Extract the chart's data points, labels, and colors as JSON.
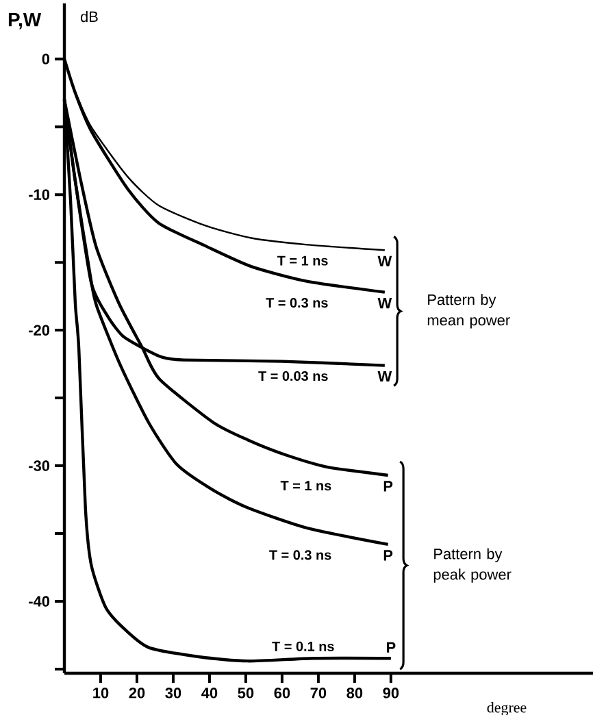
{
  "chart_data": {
    "type": "line",
    "ylabel": "P,W",
    "xlabel": "degree",
    "annotations": [
      "dB",
      "Pattern by mean power",
      "Pattern by peak power",
      {
        "text": "W",
        "x": 88.3,
        "y": -14.1
      },
      {
        "text": "W",
        "x": 88.3,
        "y": -17.2
      },
      {
        "text": "W",
        "x": 88.3,
        "y": -22.6
      },
      {
        "text": "P",
        "x": 89.2,
        "y": -30.7
      },
      {
        "text": "P",
        "x": 89.2,
        "y": -35.8
      },
      {
        "text": "P",
        "x": 90,
        "y": -44.2
      }
    ],
    "xlim": [
      0,
      145.7
    ],
    "ylim": [
      -45.3,
      4.1
    ],
    "xticks": [
      10,
      20,
      30,
      40,
      50,
      60,
      70,
      80,
      90
    ],
    "yticks": [
      {
        "value": -45,
        "label": null
      },
      -40,
      {
        "value": -35,
        "label": null
      },
      -30,
      {
        "value": -25,
        "label": null
      },
      -20,
      {
        "value": -15,
        "label": null
      },
      -10,
      {
        "value": -5,
        "label": null
      },
      0
    ],
    "grid": false,
    "legend": false,
    "marker": "none",
    "line_style": "solid",
    "series": [
      {
        "name": "T = 1 ns",
        "color": "#000000",
        "x": [
          0,
          3,
          7.4,
          17.5,
          26,
          39,
          51.5,
          67,
          88.3
        ],
        "values": [
          0,
          -2.4,
          -5.0,
          -8.7,
          -10.8,
          -12.3,
          -13.2,
          -13.7,
          -14.1
        ]
      },
      {
        "name": "T = 0.3 ns",
        "color": "#000000",
        "x": [
          0,
          3,
          7.4,
          17.5,
          26,
          39,
          51.5,
          67,
          88.3
        ],
        "values": [
          0,
          -2.5,
          -5.3,
          -9.6,
          -12.1,
          -13.8,
          -15.3,
          -16.4,
          -17.2
        ]
      },
      {
        "name": "T = 0.03 ns",
        "color": "#000000",
        "x": [
          0,
          3,
          7.4,
          12,
          16,
          21.5,
          27,
          33,
          60,
          88.3
        ],
        "values": [
          -3,
          -9,
          -16.5,
          -19,
          -20.4,
          -21.3,
          -22,
          -22.2,
          -22.3,
          -22.6
        ]
      },
      {
        "name": "T = 1 ns",
        "color": "#000000",
        "x": [
          0,
          4.3,
          8.7,
          15,
          21.5,
          26.2,
          41,
          50.6,
          61,
          72.6,
          89.2
        ],
        "values": [
          -3,
          -8.7,
          -13.8,
          -18,
          -21.3,
          -23.6,
          -26.8,
          -28.1,
          -29.2,
          -30.1,
          -30.7
        ]
      },
      {
        "name": "T = 0.3 ns",
        "color": "#000000",
        "x": [
          0,
          3,
          7.4,
          9,
          15.3,
          23.2,
          31,
          41,
          50.6,
          67,
          89.2
        ],
        "values": [
          -3,
          -9,
          -16.4,
          -18.3,
          -22.5,
          -26.8,
          -29.9,
          -31.8,
          -33.1,
          -34.6,
          -35.8
        ]
      },
      {
        "name": "T = 0.1 ns",
        "color": "#000000",
        "x": [
          0,
          1.7,
          3,
          4,
          5.8,
          7.4,
          11.3,
          16,
          23.2,
          37.4,
          50.6,
          68.7,
          90
        ],
        "values": [
          -3,
          -10.4,
          -18,
          -21.4,
          -33.1,
          -37.3,
          -40.4,
          -41.9,
          -43.4,
          -44.1,
          -44.4,
          -44.2,
          -44.2
        ]
      }
    ]
  }
}
